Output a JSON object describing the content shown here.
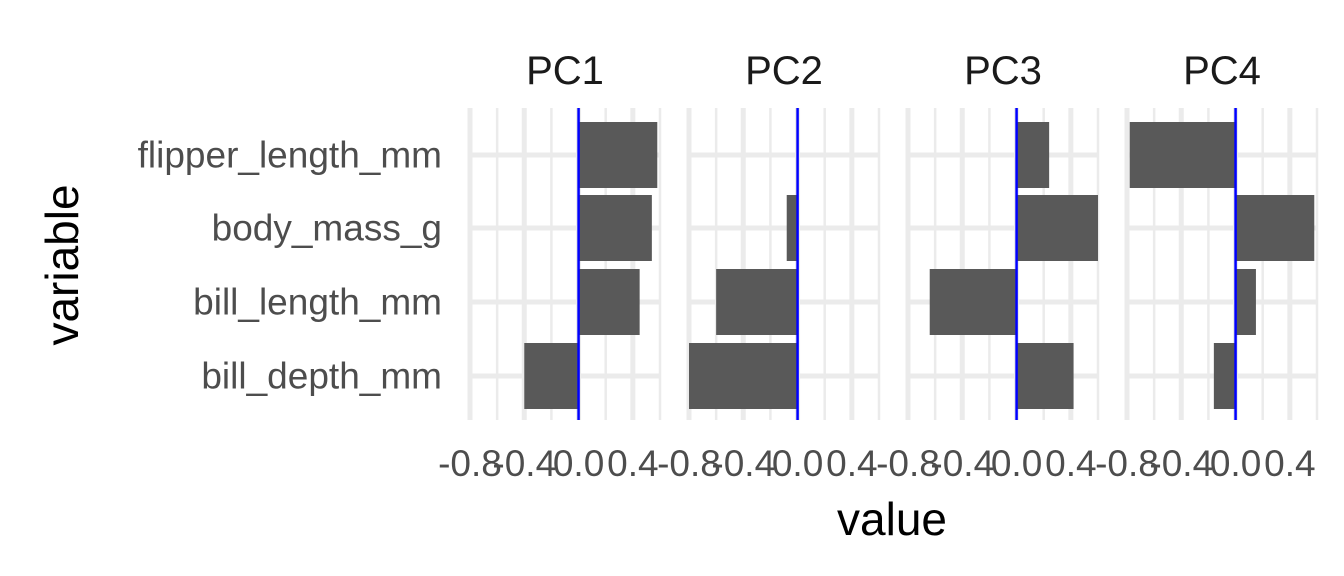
{
  "chart_data": {
    "type": "bar",
    "orientation": "horizontal",
    "facets": [
      "PC1",
      "PC2",
      "PC3",
      "PC4"
    ],
    "categories": [
      "flipper_length_mm",
      "body_mass_g",
      "bill_length_mm",
      "bill_depth_mm"
    ],
    "series": [
      {
        "facet": "PC1",
        "values": [
          0.58,
          0.54,
          0.45,
          -0.4
        ]
      },
      {
        "facet": "PC2",
        "values": [
          0.0,
          -0.08,
          -0.6,
          -0.8
        ]
      },
      {
        "facet": "PC3",
        "values": [
          0.24,
          0.6,
          -0.64,
          0.42
        ]
      },
      {
        "facet": "PC4",
        "values": [
          -0.78,
          0.58,
          0.15,
          -0.16
        ]
      }
    ],
    "xlabel": "value",
    "ylabel": "variable",
    "x_ticks": [
      "-0.8",
      "-0.4",
      "0.0",
      "0.4"
    ],
    "x_tick_values": [
      -0.8,
      -0.4,
      0.0,
      0.4
    ],
    "xlim": [
      -0.8,
      0.6
    ],
    "reference_line": {
      "x": 0,
      "color": "#0000ff"
    },
    "bar_color": "#595959",
    "grid_color": "#ebebeb",
    "grid": true,
    "legend": "none"
  }
}
